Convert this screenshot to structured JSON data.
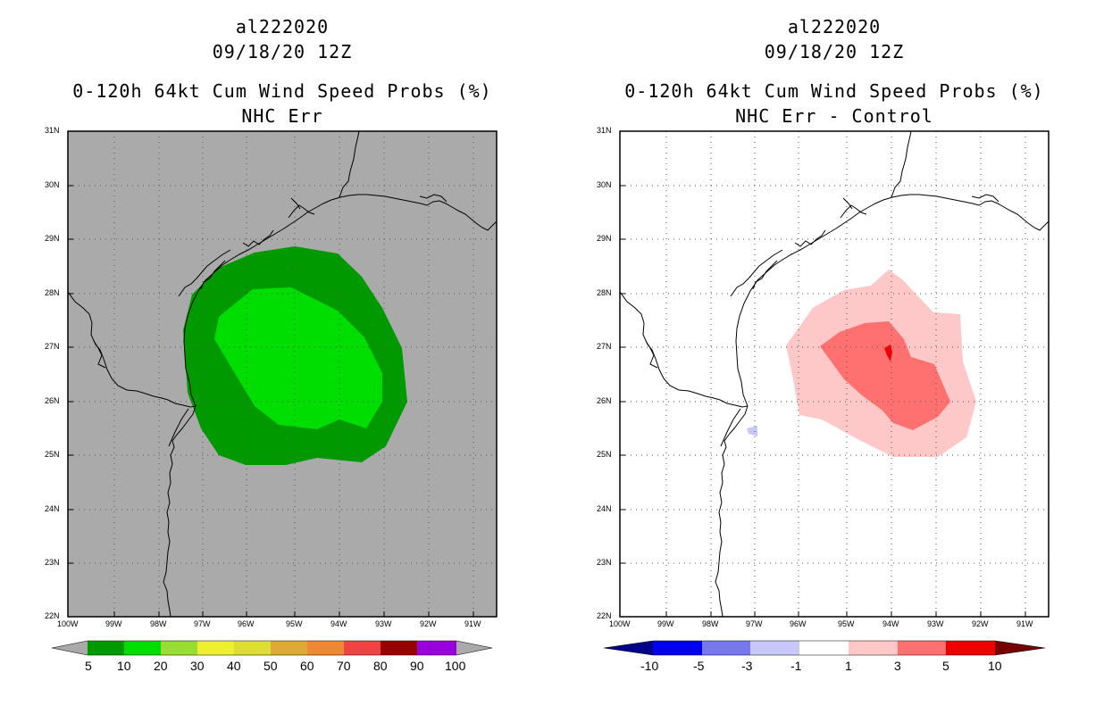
{
  "left_panel": {
    "storm_id": "al222020",
    "datetime": "09/18/20 12Z",
    "product": "0-120h 64kt Cum Wind Speed Probs (%)",
    "subtitle": "NHC Err",
    "background_color": "#aaaaaa",
    "lat_labels": [
      "31N",
      "30N",
      "29N",
      "28N",
      "27N",
      "26N",
      "25N",
      "24N",
      "23N",
      "22N"
    ],
    "lon_labels": [
      "100W",
      "99W",
      "98W",
      "97W",
      "96W",
      "95W",
      "94W",
      "93W",
      "92W",
      "91W"
    ],
    "colorbar": {
      "labels": [
        "5",
        "10",
        "20",
        "30",
        "40",
        "50",
        "60",
        "70",
        "80",
        "90",
        "100"
      ],
      "colors": [
        "#009900",
        "#00dd00",
        "#99dd33",
        "#eeee33",
        "#dddd33",
        "#ddaa33",
        "#ee8833",
        "#ee4444",
        "#990000",
        "#9900dd"
      ],
      "end_arrow_color": "#aaaaaa"
    },
    "contours": [
      {
        "level": "5-10%",
        "color": "#009900"
      },
      {
        "level": "10-20%",
        "color": "#00dd00"
      }
    ]
  },
  "right_panel": {
    "storm_id": "al222020",
    "datetime": "09/18/20 12Z",
    "product": "0-120h 64kt Cum Wind Speed Probs (%)",
    "subtitle": "NHC Err - Control",
    "background_color": "#ffffff",
    "lat_labels": [
      "31N",
      "30N",
      "29N",
      "28N",
      "27N",
      "26N",
      "25N",
      "24N",
      "23N",
      "22N"
    ],
    "lon_labels": [
      "100W",
      "99W",
      "98W",
      "97W",
      "96W",
      "95W",
      "94W",
      "93W",
      "92W",
      "91W"
    ],
    "colorbar": {
      "labels": [
        "-10",
        "-5",
        "-3",
        "-1",
        "1",
        "3",
        "5",
        "10"
      ],
      "colors": [
        "#0000aa",
        "#0000ee",
        "#7777ee",
        "#c8c8f8",
        "#ffffff",
        "#ffc8c8",
        "#ff7070",
        "#ee0000"
      ],
      "left_arrow_color": "#000088",
      "right_arrow_color": "#770000"
    },
    "contours": [
      {
        "level": "1-3",
        "color": "#ffc8c8"
      },
      {
        "level": "3-5",
        "color": "#ff7070"
      },
      {
        "level": "5-10",
        "color": "#ee0000"
      },
      {
        "level": "-3 to -1",
        "color": "#c8c8f8"
      }
    ]
  }
}
